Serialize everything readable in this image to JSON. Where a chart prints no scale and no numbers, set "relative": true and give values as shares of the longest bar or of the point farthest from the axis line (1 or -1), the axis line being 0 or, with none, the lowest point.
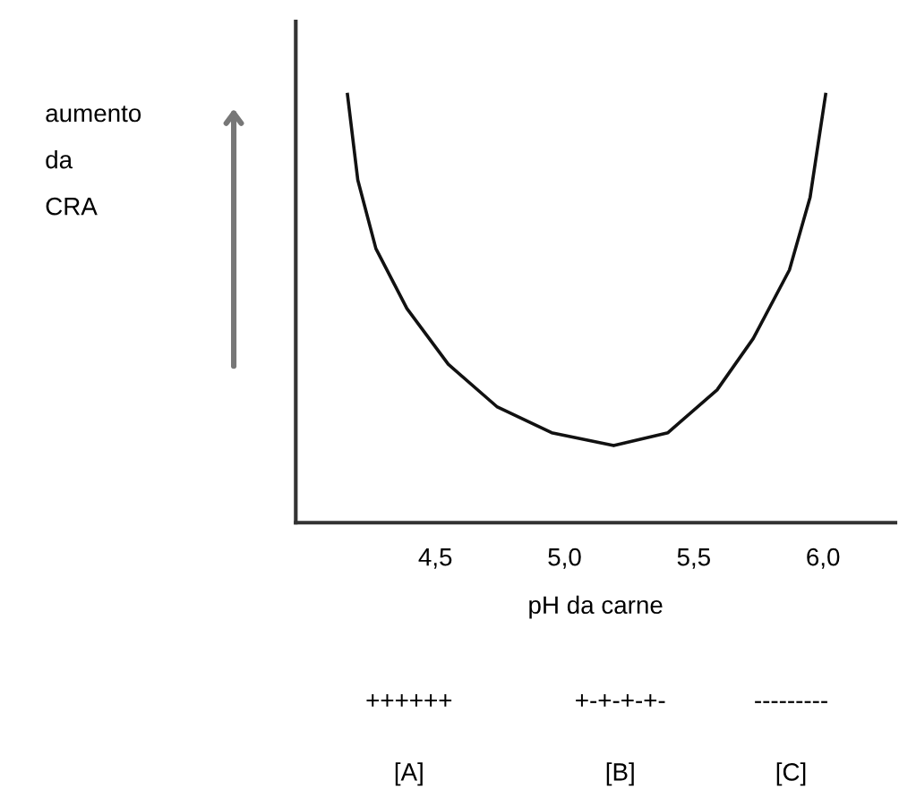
{
  "chart_data": {
    "type": "line",
    "relative": true,
    "xlabel": "pH da carne",
    "x": [
      4.16,
      4.2,
      4.27,
      4.39,
      4.55,
      4.74,
      4.95,
      5.19,
      5.4,
      5.59,
      5.73,
      5.87,
      5.95,
      6.01
    ],
    "series": [
      {
        "color": "#111111",
        "values": [
          1.0,
          0.8,
          0.64,
          0.5,
          0.37,
          0.27,
          0.21,
          0.18,
          0.21,
          0.31,
          0.43,
          0.59,
          0.76,
          1.0
        ]
      }
    ],
    "xlim": [
      3.96,
      6.28
    ],
    "xticks": [
      {
        "value": 4.5,
        "label": "4,5"
      },
      {
        "value": 5.0,
        "label": "5,0"
      },
      {
        "value": 5.5,
        "label": "5,5"
      },
      {
        "value": 6.0,
        "label": "6,0"
      }
    ],
    "tick_labels": "x",
    "grid": false,
    "legend": false,
    "marker": "none",
    "line_style": "solid",
    "annotations": [
      "aumento\nda\nCRA",
      "++++++",
      "+-+-+-+-",
      "---------",
      "[A]",
      "[B]",
      "[C]"
    ]
  }
}
